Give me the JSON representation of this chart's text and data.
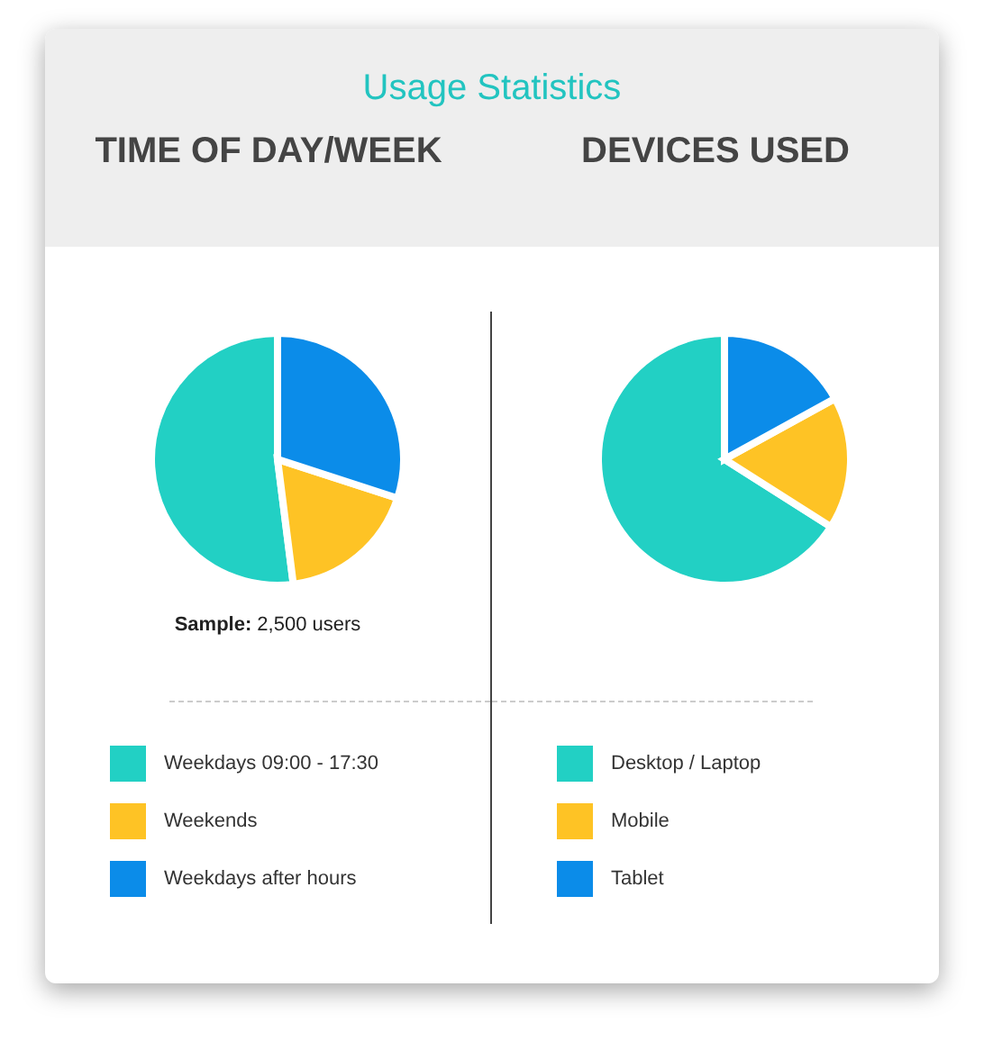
{
  "chart_data": [
    {
      "type": "pie",
      "title": "Usage Statistics",
      "subtitle": "TIME OF DAY/WEEK",
      "categories": [
        "Weekdays 09:00 - 17:30",
        "Weekends",
        "Weekdays after hours"
      ],
      "values": [
        52,
        18,
        30
      ],
      "colors": [
        "#22d0c4",
        "#fec325",
        "#0b8ce9"
      ],
      "annotations": [
        "Sample: 2,500 users"
      ],
      "legend": "bottom"
    },
    {
      "type": "pie",
      "subtitle": "DEVICES USED",
      "categories": [
        "Desktop / Laptop",
        "Mobile",
        "Tablet"
      ],
      "values": [
        66,
        17,
        17
      ],
      "colors": [
        "#22d0c4",
        "#fec325",
        "#0b8ce9"
      ],
      "legend": "bottom"
    }
  ]
}
